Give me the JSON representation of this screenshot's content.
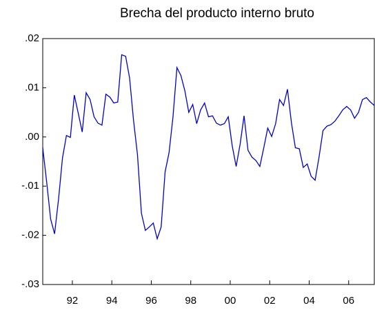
{
  "chart_data": {
    "type": "line",
    "title": "Brecha del producto interno bruto",
    "x": [
      1990.5,
      1990.7,
      1990.9,
      1991.1,
      1991.3,
      1991.5,
      1991.7,
      1991.9,
      1992.1,
      1992.3,
      1992.5,
      1992.7,
      1992.9,
      1993.1,
      1993.3,
      1993.5,
      1993.7,
      1993.9,
      1994.1,
      1994.3,
      1994.5,
      1994.7,
      1994.9,
      1995.1,
      1995.3,
      1995.5,
      1995.7,
      1995.9,
      1996.1,
      1996.3,
      1996.5,
      1996.7,
      1996.9,
      1997.1,
      1997.3,
      1997.5,
      1997.7,
      1997.9,
      1998.1,
      1998.3,
      1998.5,
      1998.7,
      1998.9,
      1999.1,
      1999.3,
      1999.5,
      1999.7,
      1999.9,
      2000.1,
      2000.3,
      2000.5,
      2000.7,
      2000.9,
      2001.1,
      2001.3,
      2001.5,
      2001.7,
      2001.9,
      2002.1,
      2002.3,
      2002.5,
      2002.7,
      2002.9,
      2003.1,
      2003.3,
      2003.5,
      2003.7,
      2003.9,
      2004.1,
      2004.3,
      2004.5,
      2004.7,
      2004.9,
      2005.1,
      2005.3,
      2005.5,
      2005.7,
      2005.9,
      2006.1,
      2006.3,
      2006.5,
      2006.7,
      2006.9,
      2007.1,
      2007.3
    ],
    "series": [
      {
        "color": "#0000cc",
        "values": [
          -0.0022,
          -0.0092,
          -0.0167,
          -0.0197,
          -0.0127,
          -0.0043,
          0.0003,
          -0.0001,
          0.0085,
          0.0048,
          0.001,
          0.009,
          0.0076,
          0.0041,
          0.0028,
          0.0024,
          0.0087,
          0.0081,
          0.0069,
          0.0071,
          0.0167,
          0.0164,
          0.012,
          0.0034,
          -0.0036,
          -0.0155,
          -0.019,
          -0.0183,
          -0.0175,
          -0.0207,
          -0.0183,
          -0.0071,
          -0.0032,
          0.0041,
          0.0141,
          0.0125,
          0.0094,
          0.005,
          0.0066,
          0.0027,
          0.0055,
          0.0069,
          0.0041,
          0.0043,
          0.0028,
          0.0024,
          0.0027,
          0.0041,
          -0.0018,
          -0.006,
          -0.0015,
          0.0043,
          -0.0027,
          -0.0041,
          -0.0048,
          -0.006,
          -0.0022,
          0.0018,
          0.0001,
          0.0027,
          0.0076,
          0.0064,
          0.0097,
          0.0029,
          -0.0022,
          -0.0024,
          -0.0062,
          -0.0055,
          -0.008,
          -0.0088,
          -0.0041,
          0.0013,
          0.0022,
          0.0025,
          0.0032,
          0.0043,
          0.0055,
          0.0062,
          0.0055,
          0.0038,
          0.005,
          0.0076,
          0.008,
          0.0071,
          0.0064
        ]
      }
    ],
    "xlim": [
      1990.5,
      2007.3
    ],
    "xticks": [
      {
        "value": 1992,
        "label": "92"
      },
      {
        "value": 1994,
        "label": "94"
      },
      {
        "value": 1996,
        "label": "96"
      },
      {
        "value": 1998,
        "label": "98"
      },
      {
        "value": 2000,
        "label": "00"
      },
      {
        "value": 2002,
        "label": "02"
      },
      {
        "value": 2004,
        "label": "04"
      },
      {
        "value": 2006,
        "label": "06"
      }
    ],
    "ylim": [
      -0.03,
      0.02
    ],
    "yticks": [
      {
        "value": -0.03,
        "label": "-.03"
      },
      {
        "value": -0.02,
        "label": "-.02"
      },
      {
        "value": -0.01,
        "label": "-.01"
      },
      {
        "value": 0,
        "label": ".00"
      },
      {
        "value": 0.01,
        "label": ".01"
      },
      {
        "value": 0.02,
        "label": ".02"
      }
    ]
  }
}
